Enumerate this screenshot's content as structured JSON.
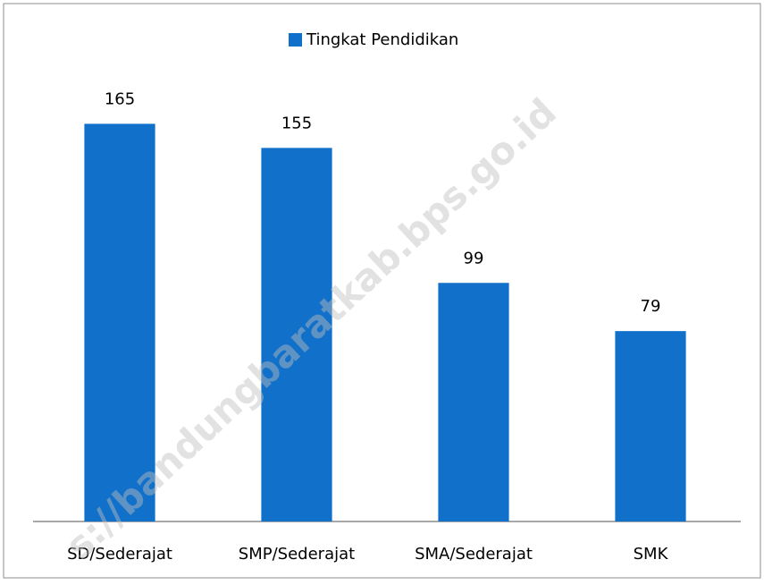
{
  "chart_data": {
    "type": "bar",
    "legend": "Tingkat Pendidikan",
    "categories": [
      "SD/Sederajat",
      "SMP/Sederajat",
      "SMA/Sederajat",
      "SMK"
    ],
    "values": [
      165,
      155,
      99,
      79
    ],
    "color": "#1170c9",
    "ylim": [
      0,
      180
    ],
    "legend_position": "top",
    "watermark": "s://bandungbaratkab.bps.go.id"
  }
}
